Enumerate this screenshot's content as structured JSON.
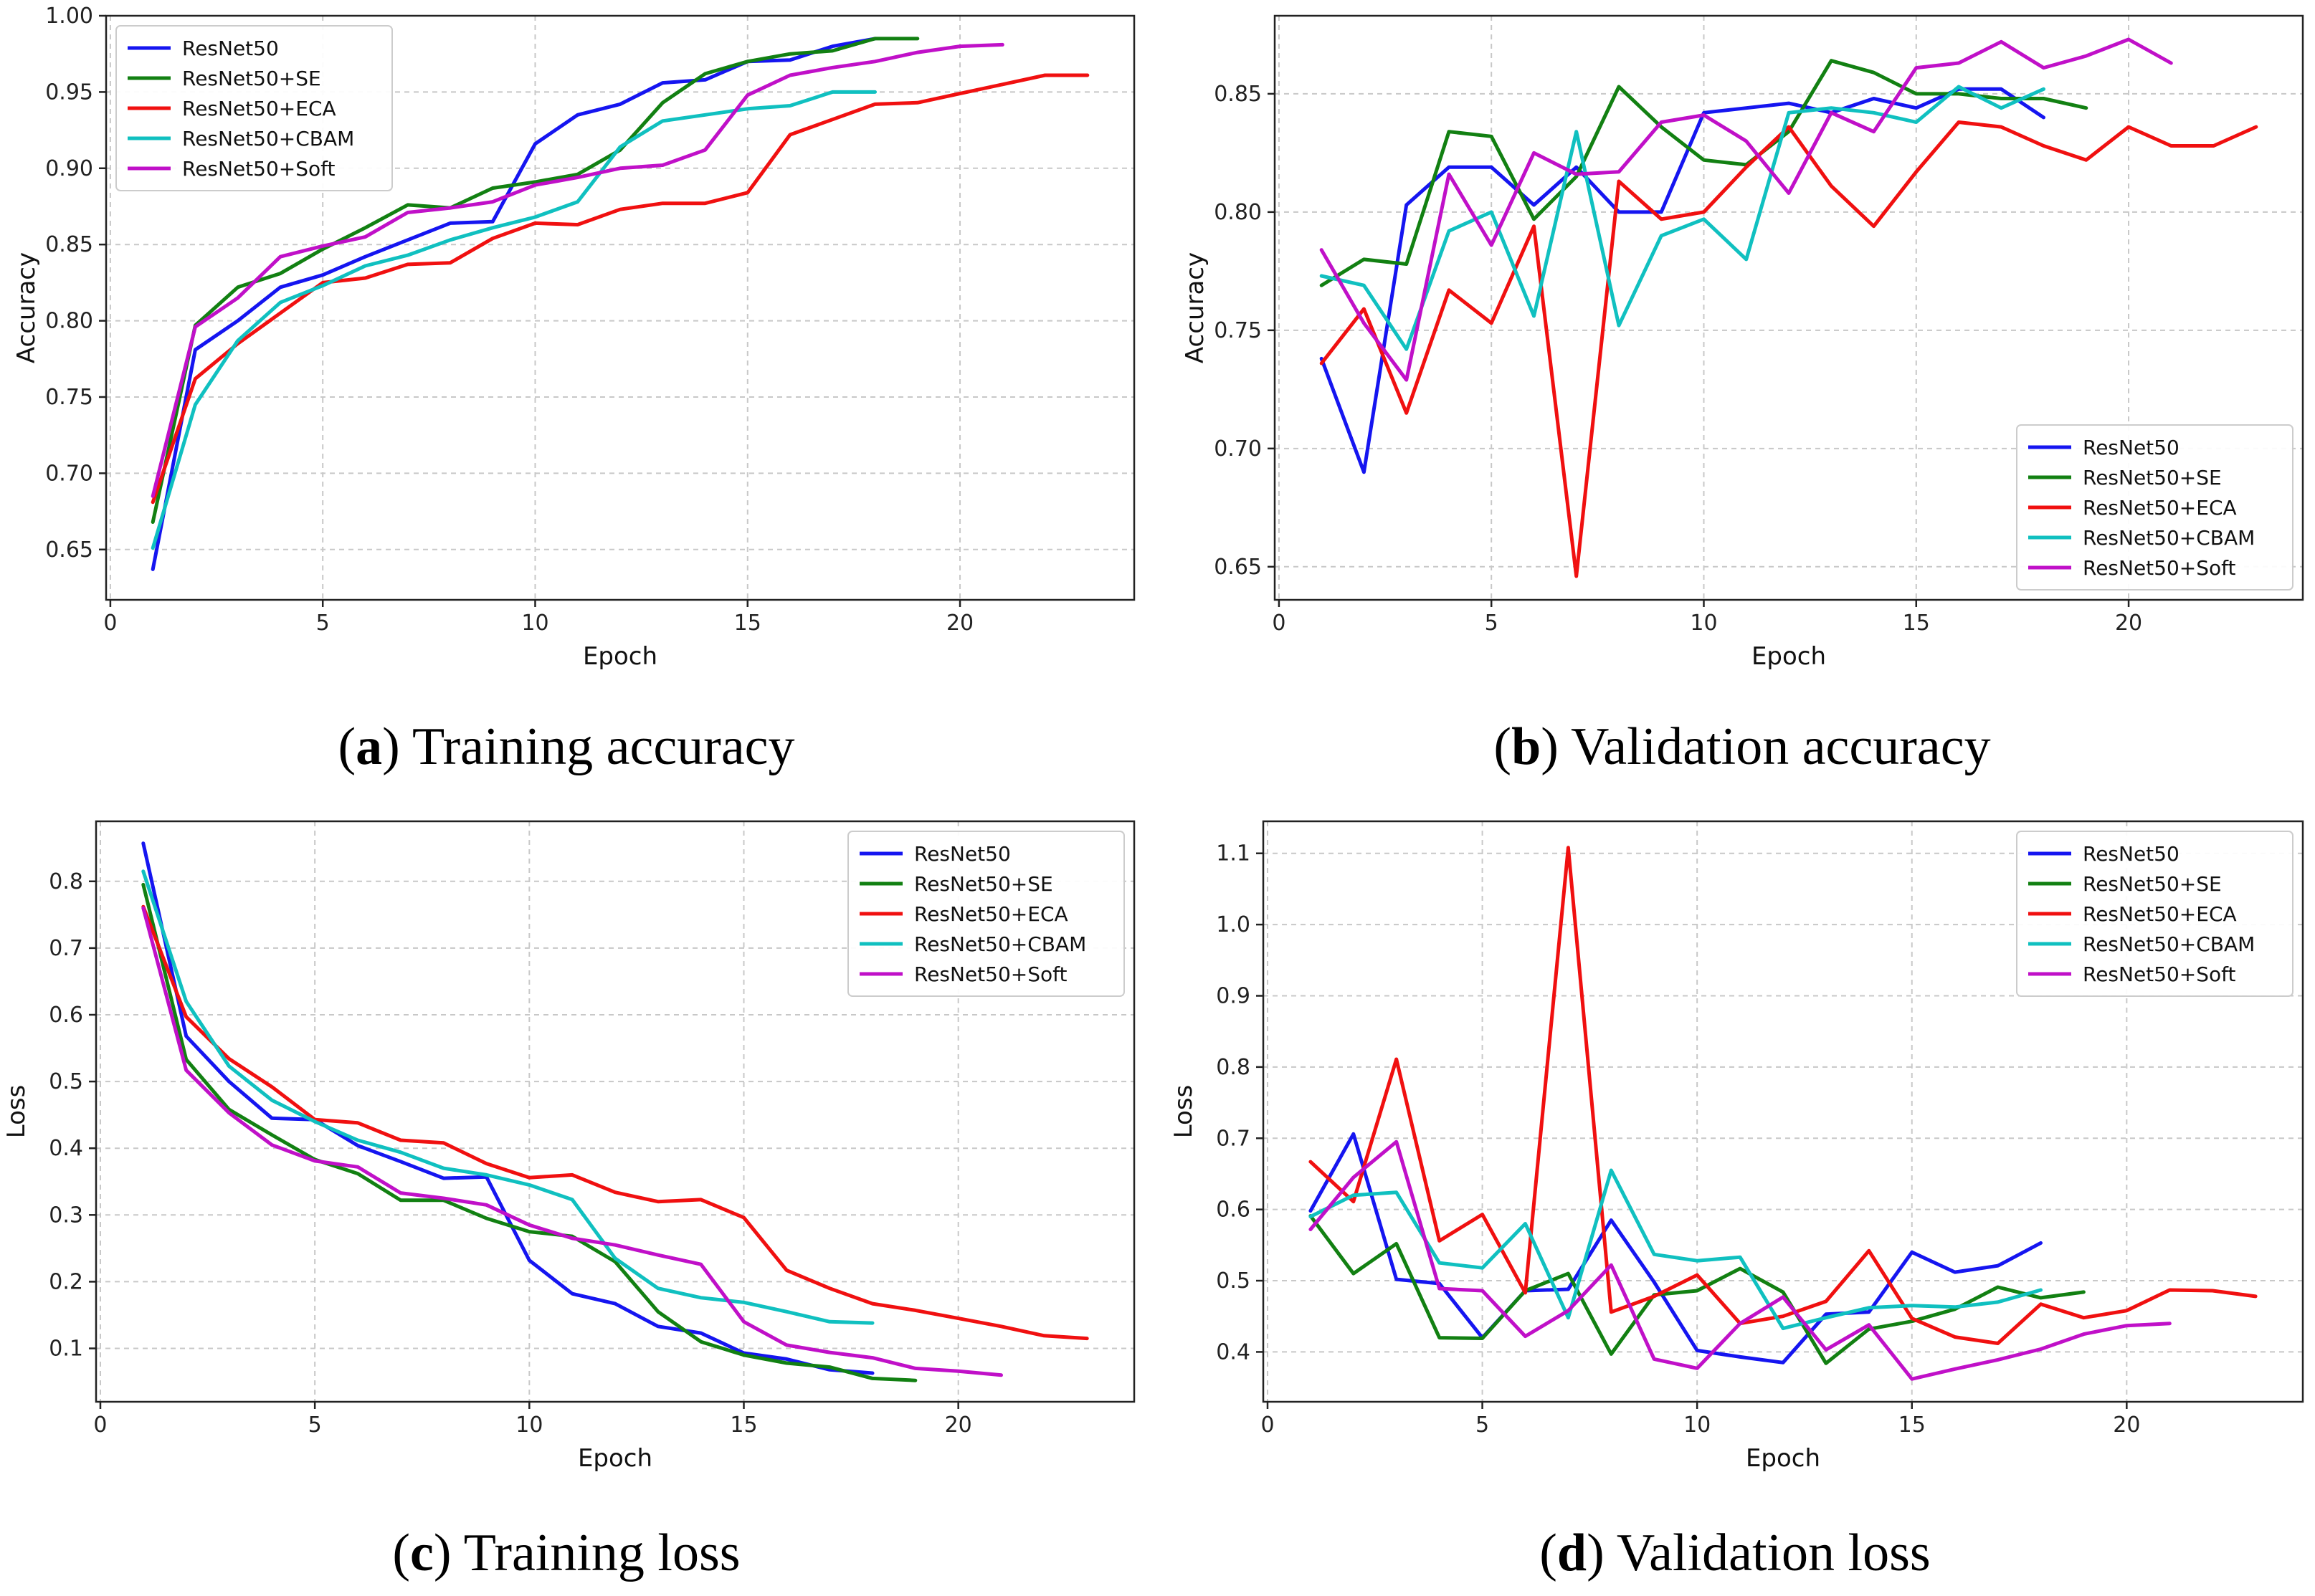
{
  "chart_data": [
    {
      "id": "a",
      "type": "line",
      "caption_letter": "a",
      "caption_text": "Training accuracy",
      "xlabel": "Epoch",
      "ylabel": "Accuracy",
      "xlim": [
        -0.1,
        24.1
      ],
      "ylim": [
        0.617,
        1.0
      ],
      "xticks": [
        0,
        5,
        10,
        15,
        20
      ],
      "xtick_labels": [
        "0",
        "5",
        "10",
        "15",
        "20"
      ],
      "yticks": [
        0.65,
        0.7,
        0.75,
        0.8,
        0.85,
        0.9,
        0.95,
        1.0
      ],
      "ytick_labels": [
        "0.65",
        "0.70",
        "0.75",
        "0.80",
        "0.85",
        "0.90",
        "0.95",
        "1.00"
      ],
      "grid": true,
      "legend_loc": "upper-left",
      "series": [
        {
          "name": "ResNet50",
          "color": "#1515f0",
          "x": [
            1,
            2,
            3,
            4,
            5,
            6,
            7,
            8,
            9,
            10,
            11,
            12,
            13,
            14,
            15,
            16,
            17,
            18
          ],
          "y": [
            0.637,
            0.781,
            0.8,
            0.822,
            0.83,
            0.842,
            0.853,
            0.864,
            0.865,
            0.916,
            0.935,
            0.942,
            0.956,
            0.958,
            0.97,
            0.971,
            0.98,
            0.985
          ]
        },
        {
          "name": "ResNet50+SE",
          "color": "#128012",
          "x": [
            1,
            2,
            3,
            4,
            5,
            6,
            7,
            8,
            9,
            10,
            11,
            12,
            13,
            14,
            15,
            16,
            17,
            18,
            19
          ],
          "y": [
            0.668,
            0.797,
            0.822,
            0.831,
            0.847,
            0.861,
            0.876,
            0.874,
            0.887,
            0.891,
            0.896,
            0.912,
            0.943,
            0.962,
            0.97,
            0.975,
            0.977,
            0.985,
            0.985
          ]
        },
        {
          "name": "ResNet50+ECA",
          "color": "#f01010",
          "x": [
            1,
            2,
            3,
            4,
            5,
            6,
            7,
            8,
            9,
            10,
            11,
            12,
            13,
            14,
            15,
            16,
            17,
            18,
            19,
            20,
            21,
            22,
            23
          ],
          "y": [
            0.681,
            0.762,
            0.785,
            0.805,
            0.825,
            0.828,
            0.837,
            0.838,
            0.854,
            0.864,
            0.863,
            0.873,
            0.877,
            0.877,
            0.884,
            0.922,
            0.932,
            0.942,
            0.943,
            0.949,
            0.955,
            0.961,
            0.961
          ]
        },
        {
          "name": "ResNet50+CBAM",
          "color": "#10c0c0",
          "x": [
            1,
            2,
            3,
            4,
            5,
            6,
            7,
            8,
            9,
            10,
            11,
            12,
            13,
            14,
            15,
            16,
            17,
            18
          ],
          "y": [
            0.651,
            0.745,
            0.787,
            0.812,
            0.823,
            0.836,
            0.843,
            0.853,
            0.861,
            0.868,
            0.878,
            0.914,
            0.931,
            0.935,
            0.939,
            0.941,
            0.95,
            0.95
          ]
        },
        {
          "name": "ResNet50+Soft",
          "color": "#c010c8",
          "x": [
            1,
            2,
            3,
            4,
            5,
            6,
            7,
            8,
            9,
            10,
            11,
            12,
            13,
            14,
            15,
            16,
            17,
            18,
            19,
            20,
            21
          ],
          "y": [
            0.685,
            0.796,
            0.815,
            0.842,
            0.849,
            0.855,
            0.871,
            0.874,
            0.878,
            0.889,
            0.894,
            0.9,
            0.902,
            0.912,
            0.948,
            0.961,
            0.966,
            0.97,
            0.976,
            0.98,
            0.981
          ]
        }
      ]
    },
    {
      "id": "b",
      "type": "line",
      "caption_letter": "b",
      "caption_text": "Validation accuracy",
      "xlabel": "Epoch",
      "ylabel": "Accuracy",
      "xlim": [
        -0.1,
        24.1
      ],
      "ylim": [
        0.636,
        0.883
      ],
      "xticks": [
        0,
        5,
        10,
        15,
        20
      ],
      "xtick_labels": [
        "0",
        "5",
        "10",
        "15",
        "20"
      ],
      "yticks": [
        0.65,
        0.7,
        0.75,
        0.8,
        0.85
      ],
      "ytick_labels": [
        "0.65",
        "0.70",
        "0.75",
        "0.80",
        "0.85"
      ],
      "grid": true,
      "legend_loc": "lower-right",
      "series": [
        {
          "name": "ResNet50",
          "color": "#1515f0",
          "x": [
            1,
            2,
            3,
            4,
            5,
            6,
            7,
            8,
            9,
            10,
            11,
            12,
            13,
            14,
            15,
            16,
            17,
            18
          ],
          "y": [
            0.738,
            0.69,
            0.803,
            0.819,
            0.819,
            0.803,
            0.819,
            0.8,
            0.8,
            0.842,
            0.844,
            0.846,
            0.842,
            0.848,
            0.844,
            0.852,
            0.852,
            0.84
          ]
        },
        {
          "name": "ResNet50+SE",
          "color": "#128012",
          "x": [
            1,
            2,
            3,
            4,
            5,
            6,
            7,
            8,
            9,
            10,
            11,
            12,
            13,
            14,
            15,
            16,
            17,
            18,
            19
          ],
          "y": [
            0.769,
            0.78,
            0.778,
            0.834,
            0.832,
            0.797,
            0.815,
            0.853,
            0.836,
            0.822,
            0.82,
            0.834,
            0.864,
            0.859,
            0.85,
            0.85,
            0.848,
            0.848,
            0.844
          ]
        },
        {
          "name": "ResNet50+ECA",
          "color": "#f01010",
          "x": [
            1,
            2,
            3,
            4,
            5,
            6,
            7,
            8,
            9,
            10,
            11,
            12,
            13,
            14,
            15,
            16,
            17,
            18,
            19,
            20,
            21,
            22,
            23
          ],
          "y": [
            0.736,
            0.759,
            0.715,
            0.767,
            0.753,
            0.794,
            0.646,
            0.813,
            0.797,
            0.8,
            0.819,
            0.836,
            0.811,
            0.794,
            0.817,
            0.838,
            0.836,
            0.828,
            0.822,
            0.836,
            0.828,
            0.828,
            0.836
          ]
        },
        {
          "name": "ResNet50+CBAM",
          "color": "#10c0c0",
          "x": [
            1,
            2,
            3,
            4,
            5,
            6,
            7,
            8,
            9,
            10,
            11,
            12,
            13,
            14,
            15,
            16,
            17,
            18
          ],
          "y": [
            0.773,
            0.769,
            0.742,
            0.792,
            0.8,
            0.756,
            0.834,
            0.752,
            0.79,
            0.797,
            0.78,
            0.842,
            0.844,
            0.842,
            0.838,
            0.853,
            0.844,
            0.852
          ]
        },
        {
          "name": "ResNet50+Soft",
          "color": "#c010c8",
          "x": [
            1,
            2,
            3,
            4,
            5,
            6,
            7,
            8,
            9,
            10,
            11,
            12,
            13,
            14,
            15,
            16,
            17,
            18,
            19,
            20,
            21
          ],
          "y": [
            0.784,
            0.753,
            0.729,
            0.816,
            0.786,
            0.825,
            0.816,
            0.817,
            0.838,
            0.841,
            0.83,
            0.808,
            0.842,
            0.834,
            0.861,
            0.863,
            0.872,
            0.861,
            0.866,
            0.873,
            0.863
          ]
        }
      ]
    },
    {
      "id": "c",
      "type": "line",
      "caption_letter": "c",
      "caption_text": "Training loss",
      "xlabel": "Epoch",
      "ylabel": "Loss",
      "xlim": [
        -0.1,
        24.1
      ],
      "ylim": [
        0.02,
        0.89
      ],
      "xticks": [
        0,
        5,
        10,
        15,
        20
      ],
      "xtick_labels": [
        "0",
        "5",
        "10",
        "15",
        "20"
      ],
      "yticks": [
        0.1,
        0.2,
        0.3,
        0.4,
        0.5,
        0.6,
        0.7,
        0.8
      ],
      "ytick_labels": [
        "0.1",
        "0.2",
        "0.3",
        "0.4",
        "0.5",
        "0.6",
        "0.7",
        "0.8"
      ],
      "grid": true,
      "legend_loc": "upper-right",
      "series": [
        {
          "name": "ResNet50",
          "color": "#1515f0",
          "x": [
            1,
            2,
            3,
            4,
            5,
            6,
            7,
            8,
            9,
            10,
            11,
            12,
            13,
            14,
            15,
            16,
            17,
            18
          ],
          "y": [
            0.857,
            0.568,
            0.5,
            0.445,
            0.443,
            0.404,
            0.38,
            0.355,
            0.357,
            0.232,
            0.182,
            0.167,
            0.133,
            0.123,
            0.093,
            0.084,
            0.068,
            0.063
          ]
        },
        {
          "name": "ResNet50+SE",
          "color": "#128012",
          "x": [
            1,
            2,
            3,
            4,
            5,
            6,
            7,
            8,
            9,
            10,
            11,
            12,
            13,
            14,
            15,
            16,
            17,
            18,
            19
          ],
          "y": [
            0.795,
            0.533,
            0.458,
            0.42,
            0.383,
            0.362,
            0.322,
            0.322,
            0.295,
            0.275,
            0.268,
            0.23,
            0.155,
            0.11,
            0.09,
            0.078,
            0.072,
            0.055,
            0.052
          ]
        },
        {
          "name": "ResNet50+ECA",
          "color": "#f01010",
          "x": [
            1,
            2,
            3,
            4,
            5,
            6,
            7,
            8,
            9,
            10,
            11,
            12,
            13,
            14,
            15,
            16,
            17,
            18,
            19,
            20,
            21,
            22,
            23
          ],
          "y": [
            0.762,
            0.597,
            0.534,
            0.492,
            0.443,
            0.438,
            0.412,
            0.408,
            0.377,
            0.356,
            0.36,
            0.334,
            0.32,
            0.323,
            0.296,
            0.217,
            0.19,
            0.167,
            0.157,
            0.145,
            0.133,
            0.119,
            0.115
          ]
        },
        {
          "name": "ResNet50+CBAM",
          "color": "#10c0c0",
          "x": [
            1,
            2,
            3,
            4,
            5,
            6,
            7,
            8,
            9,
            10,
            11,
            12,
            13,
            14,
            15,
            16,
            17,
            18
          ],
          "y": [
            0.815,
            0.62,
            0.523,
            0.472,
            0.44,
            0.412,
            0.394,
            0.37,
            0.36,
            0.345,
            0.323,
            0.235,
            0.19,
            0.176,
            0.169,
            0.155,
            0.14,
            0.138
          ]
        },
        {
          "name": "ResNet50+Soft",
          "color": "#c010c8",
          "x": [
            1,
            2,
            3,
            4,
            5,
            6,
            7,
            8,
            9,
            10,
            11,
            12,
            13,
            14,
            15,
            16,
            17,
            18,
            19,
            20,
            21
          ],
          "y": [
            0.76,
            0.517,
            0.453,
            0.405,
            0.381,
            0.372,
            0.333,
            0.325,
            0.315,
            0.285,
            0.265,
            0.255,
            0.24,
            0.226,
            0.14,
            0.105,
            0.094,
            0.086,
            0.07,
            0.066,
            0.06
          ]
        }
      ]
    },
    {
      "id": "d",
      "type": "line",
      "caption_letter": "d",
      "caption_text": "Validation loss",
      "xlabel": "Epoch",
      "ylabel": "Loss",
      "xlim": [
        -0.1,
        24.1
      ],
      "ylim": [
        0.33,
        1.145
      ],
      "xticks": [
        0,
        5,
        10,
        15,
        20
      ],
      "xtick_labels": [
        "0",
        "5",
        "10",
        "15",
        "20"
      ],
      "yticks": [
        0.4,
        0.5,
        0.6,
        0.7,
        0.8,
        0.9,
        1.0,
        1.1
      ],
      "ytick_labels": [
        "0.4",
        "0.5",
        "0.6",
        "0.7",
        "0.8",
        "0.9",
        "1.0",
        "1.1"
      ],
      "grid": true,
      "legend_loc": "upper-right",
      "series": [
        {
          "name": "ResNet50",
          "color": "#1515f0",
          "x": [
            1,
            2,
            3,
            4,
            5,
            6,
            7,
            8,
            9,
            10,
            11,
            12,
            13,
            14,
            15,
            16,
            17,
            18
          ],
          "y": [
            0.598,
            0.706,
            0.502,
            0.496,
            0.42,
            0.486,
            0.488,
            0.585,
            0.498,
            0.402,
            0.393,
            0.385,
            0.453,
            0.456,
            0.54,
            0.512,
            0.521,
            0.553
          ]
        },
        {
          "name": "ResNet50+SE",
          "color": "#128012",
          "x": [
            1,
            2,
            3,
            4,
            5,
            6,
            7,
            8,
            9,
            10,
            11,
            12,
            13,
            14,
            15,
            16,
            17,
            18,
            19
          ],
          "y": [
            0.591,
            0.51,
            0.552,
            0.42,
            0.419,
            0.486,
            0.51,
            0.397,
            0.48,
            0.486,
            0.517,
            0.484,
            0.384,
            0.432,
            0.443,
            0.46,
            0.491,
            0.476,
            0.484
          ]
        },
        {
          "name": "ResNet50+ECA",
          "color": "#f01010",
          "x": [
            1,
            2,
            3,
            4,
            5,
            6,
            7,
            8,
            9,
            10,
            11,
            12,
            13,
            14,
            15,
            16,
            17,
            18,
            19,
            20,
            21,
            22,
            23
          ],
          "y": [
            0.667,
            0.611,
            0.811,
            0.556,
            0.593,
            0.483,
            1.108,
            0.456,
            0.478,
            0.508,
            0.44,
            0.45,
            0.471,
            0.542,
            0.447,
            0.421,
            0.412,
            0.467,
            0.448,
            0.458,
            0.487,
            0.486,
            0.478
          ]
        },
        {
          "name": "ResNet50+CBAM",
          "color": "#10c0c0",
          "x": [
            1,
            2,
            3,
            4,
            5,
            6,
            7,
            8,
            9,
            10,
            11,
            12,
            13,
            14,
            15,
            16,
            17,
            18
          ],
          "y": [
            0.59,
            0.62,
            0.624,
            0.525,
            0.518,
            0.58,
            0.448,
            0.655,
            0.537,
            0.528,
            0.533,
            0.433,
            0.448,
            0.462,
            0.465,
            0.463,
            0.47,
            0.487
          ]
        },
        {
          "name": "ResNet50+Soft",
          "color": "#c010c8",
          "x": [
            1,
            2,
            3,
            4,
            5,
            6,
            7,
            8,
            9,
            10,
            11,
            12,
            13,
            14,
            15,
            16,
            17,
            18,
            19,
            20,
            21
          ],
          "y": [
            0.572,
            0.645,
            0.695,
            0.489,
            0.486,
            0.422,
            0.458,
            0.522,
            0.39,
            0.377,
            0.44,
            0.477,
            0.403,
            0.438,
            0.362,
            0.376,
            0.389,
            0.404,
            0.425,
            0.437,
            0.44
          ]
        }
      ]
    }
  ]
}
